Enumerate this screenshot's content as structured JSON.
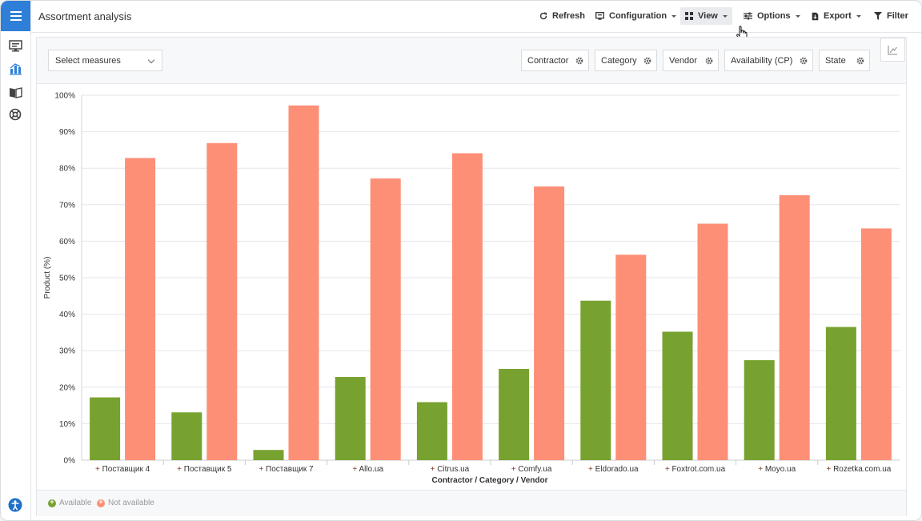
{
  "app": {
    "title": "Assortment analysis",
    "colors": {
      "accent": "#2f7fd8",
      "available": "#78a22f",
      "not_available": "#fd8f76"
    }
  },
  "rail": {
    "icons": [
      "monitor-icon",
      "analytics-icon",
      "catalog-icon",
      "support-icon",
      "accessibility-icon"
    ]
  },
  "toolbar": {
    "refresh": "Refresh",
    "configuration": "Configuration",
    "view": "View",
    "options": "Options",
    "export": "Export",
    "filter": "Filter"
  },
  "filters": {
    "measures_placeholder": "Select measures",
    "chips": [
      "Contractor",
      "Category",
      "Vendor",
      "Availability (CP)",
      "State"
    ]
  },
  "chart_data": {
    "type": "bar",
    "xlabel": "Contractor / Category / Vendor",
    "ylabel": "Product (%)",
    "ylim": [
      0,
      100
    ],
    "yticks": [
      "0%",
      "10%",
      "20%",
      "30%",
      "40%",
      "50%",
      "60%",
      "70%",
      "80%",
      "90%",
      "100%"
    ],
    "categories": [
      "Поставщик 4",
      "Поставщик 5",
      "Поставщик 7",
      "Allo.ua",
      "Citrus.ua",
      "Comfy.ua",
      "Eldorado.ua",
      "Foxtrot.com.ua",
      "Moyo.ua",
      "Rozetka.com.ua"
    ],
    "series": [
      {
        "name": "Available",
        "color": "#78a22f",
        "values": [
          17.2,
          13.1,
          2.8,
          22.8,
          15.9,
          25,
          43.7,
          35.2,
          27.4,
          36.5
        ]
      },
      {
        "name": "Not available",
        "color": "#fd8f76",
        "values": [
          82.8,
          86.9,
          97.2,
          77.2,
          84.1,
          75,
          56.3,
          64.8,
          72.6,
          63.5
        ]
      }
    ],
    "grid": true,
    "legend": "bottom-left"
  }
}
